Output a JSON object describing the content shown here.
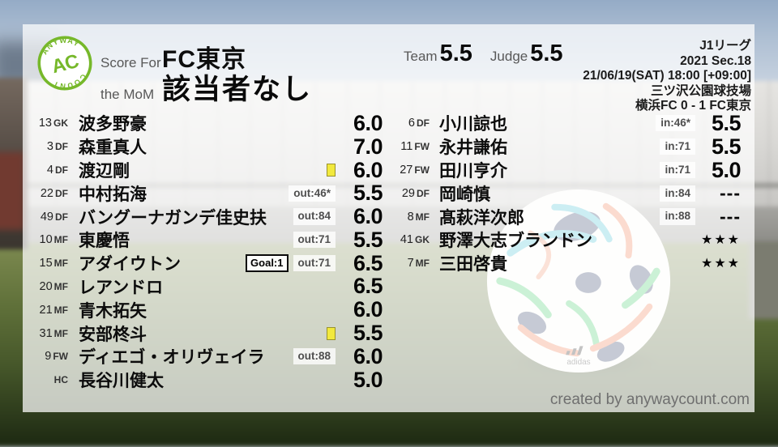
{
  "brand": {
    "arc_top": "ANYWAY",
    "initials": "AC",
    "arc_bottom": "COUNT",
    "green": "#76b82a"
  },
  "header": {
    "score_for_label": "Score For",
    "team_name": "FC東京",
    "mom_label": "the MoM",
    "mom_value": "該当者なし",
    "team_label": "Team",
    "team_score": "5.5",
    "judge_label": "Judge",
    "judge_score": "5.5"
  },
  "match": {
    "league": "J1リーグ",
    "section": "2021 Sec.18",
    "kickoff": "21/06/19(SAT) 18:00 [+09:00]",
    "venue": "三ツ沢公園球技場",
    "result": "横浜FC 0 - 1 FC東京"
  },
  "starters": [
    {
      "num": "13",
      "pos": "GK",
      "name": "波多野豪",
      "score": "6.0"
    },
    {
      "num": "3",
      "pos": "DF",
      "name": "森重真人",
      "score": "7.0"
    },
    {
      "num": "4",
      "pos": "DF",
      "name": "渡辺剛",
      "card": true,
      "score": "6.0"
    },
    {
      "num": "22",
      "pos": "DF",
      "name": "中村拓海",
      "badges": [
        "out:46*"
      ],
      "score": "5.5"
    },
    {
      "num": "49",
      "pos": "DF",
      "name": "バングーナガンデ佳史扶",
      "badges": [
        "out:84"
      ],
      "score": "6.0"
    },
    {
      "num": "10",
      "pos": "MF",
      "name": "東慶悟",
      "badges": [
        "out:71"
      ],
      "score": "5.5"
    },
    {
      "num": "15",
      "pos": "MF",
      "name": "アダイウトン",
      "goal": "Goal:1",
      "badges": [
        "out:71"
      ],
      "score": "6.5"
    },
    {
      "num": "20",
      "pos": "MF",
      "name": "レアンドロ",
      "score": "6.5"
    },
    {
      "num": "21",
      "pos": "MF",
      "name": "青木拓矢",
      "score": "6.0"
    },
    {
      "num": "31",
      "pos": "MF",
      "name": "安部柊斗",
      "card": true,
      "score": "5.5"
    },
    {
      "num": "9",
      "pos": "FW",
      "name": "ディエゴ・オリヴェイラ",
      "badges": [
        "out:88"
      ],
      "score": "6.0"
    },
    {
      "num": "",
      "pos": "HC",
      "name": "長谷川健太",
      "score": "5.0"
    }
  ],
  "subs": [
    {
      "num": "6",
      "pos": "DF",
      "name": "小川諒也",
      "badges": [
        "in:46*"
      ],
      "score": "5.5"
    },
    {
      "num": "11",
      "pos": "FW",
      "name": "永井謙佑",
      "badges": [
        "in:71"
      ],
      "score": "5.5"
    },
    {
      "num": "27",
      "pos": "FW",
      "name": "田川亨介",
      "badges": [
        "in:71"
      ],
      "score": "5.0"
    },
    {
      "num": "29",
      "pos": "DF",
      "name": "岡崎慎",
      "badges": [
        "in:84"
      ],
      "score": "---"
    },
    {
      "num": "8",
      "pos": "MF",
      "name": "髙萩洋次郎",
      "badges": [
        "in:88"
      ],
      "score": "---"
    },
    {
      "num": "41",
      "pos": "GK",
      "name": "野澤大志ブランドン",
      "score": "★★★"
    },
    {
      "num": "7",
      "pos": "MF",
      "name": "三田啓貴",
      "score": "★★★"
    }
  ],
  "ball": {
    "brand_mark": "adidas"
  },
  "footer": {
    "credit": "created by anywaycount.com"
  }
}
